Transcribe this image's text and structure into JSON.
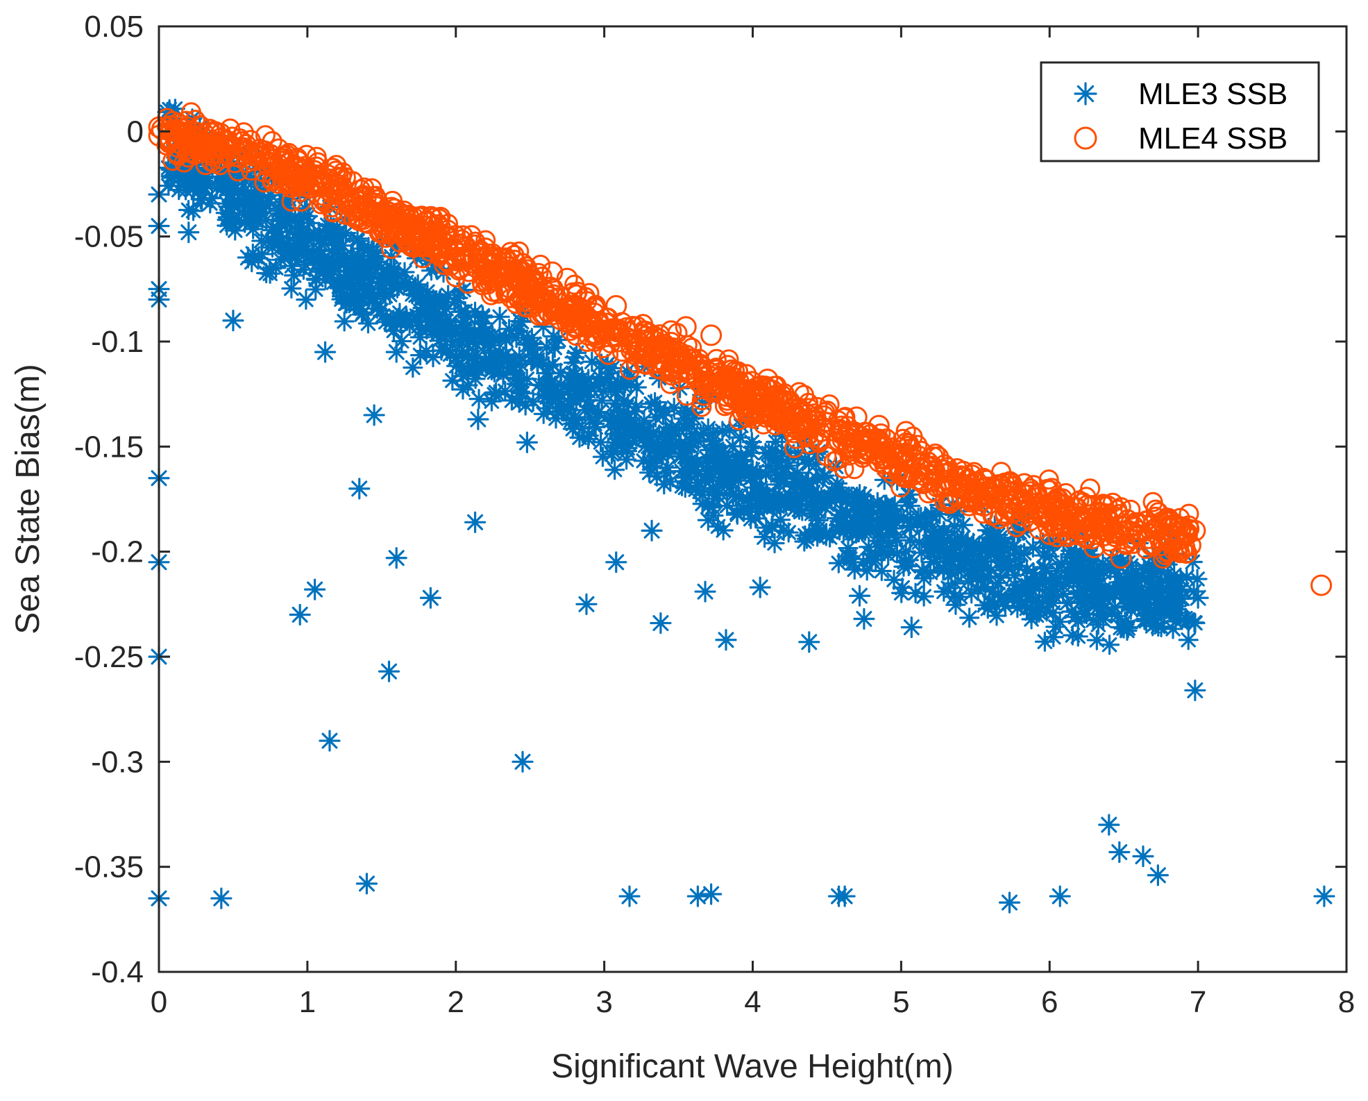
{
  "chart_data": {
    "type": "scatter",
    "title": "",
    "xlabel": "Significant Wave Height(m)",
    "ylabel": "Sea State Bias(m)",
    "xlim": [
      0,
      8
    ],
    "ylim": [
      -0.4,
      0.05
    ],
    "xticks": [
      "0",
      "1",
      "2",
      "3",
      "4",
      "5",
      "6",
      "7",
      "8"
    ],
    "yticks": [
      "0.05",
      "0",
      "-0.05",
      "-0.1",
      "-0.15",
      "-0.2",
      "-0.25",
      "-0.3",
      "-0.35",
      "-0.4"
    ],
    "grid": false,
    "legend_position": "top-right",
    "series": [
      {
        "name": "MLE3 SSB",
        "marker": "asterisk",
        "color": "#0072BD",
        "main_band": {
          "x": [
            0.05,
            0.5,
            1,
            1.5,
            2,
            2.5,
            3,
            3.5,
            4,
            4.5,
            5,
            5.5,
            6,
            6.5,
            7
          ],
          "y": [
            -0.005,
            -0.03,
            -0.055,
            -0.075,
            -0.097,
            -0.115,
            -0.133,
            -0.15,
            -0.166,
            -0.18,
            -0.193,
            -0.204,
            -0.213,
            -0.219,
            -0.222
          ],
          "spread": 0.018
        },
        "outliers": [
          [
            0.0,
            -0.03
          ],
          [
            0.0,
            -0.045
          ],
          [
            0.0,
            -0.075
          ],
          [
            0.0,
            -0.08
          ],
          [
            0.0,
            -0.165
          ],
          [
            0.0,
            -0.205
          ],
          [
            0.0,
            -0.25
          ],
          [
            0.0,
            -0.365
          ],
          [
            0.2,
            -0.048
          ],
          [
            0.5,
            -0.09
          ],
          [
            0.6,
            -0.06
          ],
          [
            0.42,
            -0.365
          ],
          [
            0.95,
            -0.23
          ],
          [
            1.05,
            -0.218
          ],
          [
            1.12,
            -0.105
          ],
          [
            1.15,
            -0.29
          ],
          [
            1.35,
            -0.17
          ],
          [
            1.4,
            -0.358
          ],
          [
            1.45,
            -0.135
          ],
          [
            1.55,
            -0.257
          ],
          [
            1.6,
            -0.105
          ],
          [
            1.6,
            -0.203
          ],
          [
            1.83,
            -0.222
          ],
          [
            2.13,
            -0.186
          ],
          [
            2.15,
            -0.137
          ],
          [
            2.45,
            -0.3
          ],
          [
            2.48,
            -0.148
          ],
          [
            2.88,
            -0.225
          ],
          [
            3.08,
            -0.205
          ],
          [
            3.17,
            -0.364
          ],
          [
            3.32,
            -0.19
          ],
          [
            3.38,
            -0.234
          ],
          [
            3.63,
            -0.364
          ],
          [
            3.68,
            -0.219
          ],
          [
            3.7,
            -0.185
          ],
          [
            3.72,
            -0.363
          ],
          [
            3.82,
            -0.242
          ],
          [
            4.05,
            -0.217
          ],
          [
            4.08,
            -0.193
          ],
          [
            4.38,
            -0.243
          ],
          [
            4.58,
            -0.364
          ],
          [
            4.62,
            -0.364
          ],
          [
            4.72,
            -0.221
          ],
          [
            4.75,
            -0.232
          ],
          [
            5.07,
            -0.236
          ],
          [
            5.73,
            -0.367
          ],
          [
            6.07,
            -0.364
          ],
          [
            6.4,
            -0.33
          ],
          [
            6.47,
            -0.343
          ],
          [
            6.48,
            -0.236
          ],
          [
            6.63,
            -0.345
          ],
          [
            6.73,
            -0.354
          ],
          [
            6.98,
            -0.266
          ],
          [
            7.0,
            -0.222
          ],
          [
            7.85,
            -0.364
          ]
        ]
      },
      {
        "name": "MLE4 SSB",
        "marker": "circle",
        "color": "#FF4F00",
        "main_band": {
          "x": [
            0.05,
            0.5,
            1,
            1.5,
            2,
            2.5,
            3,
            3.5,
            4,
            4.5,
            5,
            5.5,
            6,
            6.5,
            6.95
          ],
          "y": [
            -0.002,
            -0.01,
            -0.022,
            -0.04,
            -0.057,
            -0.075,
            -0.093,
            -0.111,
            -0.127,
            -0.142,
            -0.157,
            -0.17,
            -0.18,
            -0.188,
            -0.193
          ],
          "spread": 0.009
        },
        "outliers": [
          [
            0.0,
            0.002
          ],
          [
            0.0,
            -0.002
          ],
          [
            0.02,
            0.001
          ],
          [
            0.2,
            -0.005
          ],
          [
            1.65,
            -0.038
          ],
          [
            1.78,
            -0.048
          ],
          [
            1.85,
            -0.045
          ],
          [
            2.15,
            -0.058
          ],
          [
            2.18,
            -0.06
          ],
          [
            2.45,
            -0.063
          ],
          [
            2.65,
            -0.067
          ],
          [
            2.75,
            -0.07
          ],
          [
            3.08,
            -0.083
          ],
          [
            3.22,
            -0.093
          ],
          [
            3.45,
            -0.095
          ],
          [
            3.55,
            -0.093
          ],
          [
            3.72,
            -0.097
          ],
          [
            4.1,
            -0.118
          ],
          [
            4.7,
            -0.136
          ],
          [
            4.85,
            -0.14
          ],
          [
            5.05,
            -0.15
          ],
          [
            5.25,
            -0.155
          ],
          [
            5.4,
            -0.164
          ],
          [
            6.3,
            -0.198
          ],
          [
            6.48,
            -0.203
          ],
          [
            6.95,
            -0.197
          ],
          [
            6.98,
            -0.19
          ],
          [
            7.83,
            -0.216
          ]
        ]
      }
    ]
  }
}
